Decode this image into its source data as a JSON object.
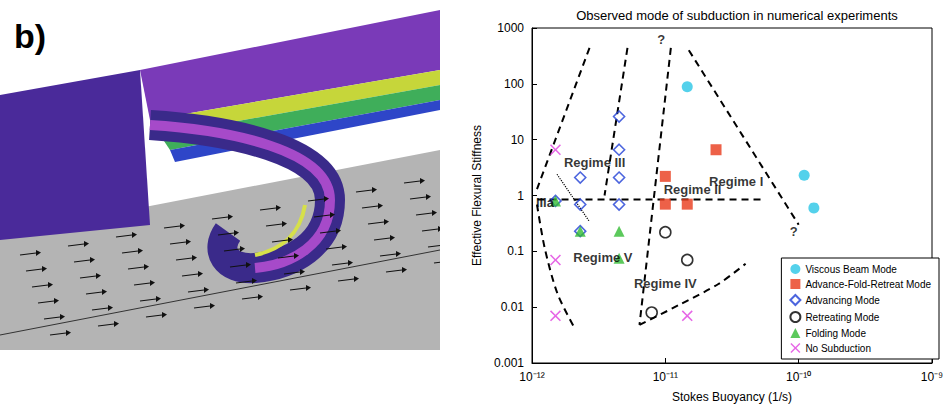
{
  "image_panel": {
    "label": "b)"
  },
  "chart_data": {
    "type": "scatter",
    "title": "Observed mode of subduction in numerical experiments",
    "x_label": "Stokes Buoyancy (1/s)",
    "y_label": "Effective Flexural Stiffness",
    "log": true,
    "grid": false,
    "legend": "lower right",
    "xlim": [
      1e-12,
      1e-09
    ],
    "xticks": [
      {
        "value": 1e-12,
        "label": "10⁻¹²"
      },
      {
        "value": 1e-11,
        "label": "10⁻¹¹"
      },
      {
        "value": 1e-10,
        "label": "10⁻¹⁰"
      },
      {
        "value": 1e-09,
        "label": "10⁻⁹"
      }
    ],
    "ylim": [
      0.001,
      1000
    ],
    "yticks": [
      0.001,
      0.01,
      0.1,
      1,
      10,
      100,
      1000
    ],
    "series": [
      {
        "name": "Viscous Beam Mode",
        "color": "#29c5e6",
        "marker": "circle",
        "x": [
          1.46e-11,
          1.1e-10,
          1.3e-10
        ],
        "y": [
          89,
          2.3,
          0.6
        ]
      },
      {
        "name": "Advance-Fold-Retreat Mode",
        "color": "#e8391a",
        "marker": "square",
        "x": [
          2.4e-11,
          1e-11,
          1e-11,
          1.46e-11
        ],
        "y": [
          6.6,
          2.2,
          0.7,
          0.7
        ]
      },
      {
        "name": "Advancing Mode",
        "color": "#1f3fd6",
        "marker": "diamond_open",
        "x": [
          2.3e-12,
          2.3e-12,
          2.3e-12,
          4.5e-12,
          4.5e-12,
          4.5e-12,
          4.5e-12,
          1.5e-12
        ],
        "y": [
          2.1,
          0.69,
          0.23,
          26,
          6.6,
          2.1,
          0.69,
          0.8
        ]
      },
      {
        "name": "Retreating Mode",
        "color": "#000000",
        "marker": "circle_open",
        "x": [
          1e-11,
          1.46e-11,
          7.9e-12
        ],
        "y": [
          0.22,
          0.07,
          0.008
        ]
      },
      {
        "name": "Folding Mode",
        "color": "#33bb33",
        "marker": "triangle",
        "x": [
          1.5e-12,
          2.3e-12,
          4.5e-12,
          4.5e-12
        ],
        "y": [
          0.8,
          0.23,
          0.23,
          0.075
        ]
      },
      {
        "name": "No Subduction",
        "color": "#e040e0",
        "marker": "x",
        "x": [
          1.5e-12,
          1.5e-12,
          1.5e-12,
          1.46e-11
        ],
        "y": [
          6.6,
          0.07,
          0.007,
          0.007
        ]
      }
    ],
    "regime_boundaries": [
      {
        "line_style": "dashed",
        "points": [
          [
            2.7e-12,
            440
          ],
          [
            1.09e-12,
            1.3
          ]
        ]
      },
      {
        "line_style": "dashed",
        "points": [
          [
            1.09e-12,
            0.69
          ],
          [
            1.25e-12,
            0.11
          ],
          [
            1.56e-12,
            0.017
          ],
          [
            2.1e-12,
            0.0041
          ]
        ]
      },
      {
        "line_style": "dashed",
        "points": [
          [
            5.2e-12,
            440
          ],
          [
            3.5e-12,
            1.0
          ]
        ]
      },
      {
        "line_style": "dashed",
        "points": [
          [
            1.1e-11,
            440
          ],
          [
            6.4e-12,
            0.0048
          ]
        ]
      },
      {
        "line_style": "dashed",
        "points": [
          [
            1.5e-11,
            400
          ],
          [
            1e-10,
            0.3
          ]
        ]
      },
      {
        "line_style": "dashed",
        "points": [
          [
            1.1e-12,
            0.85
          ],
          [
            5.5e-11,
            0.85
          ]
        ]
      },
      {
        "line_style": "dashed",
        "points": [
          [
            6.4e-12,
            0.0048
          ],
          [
            1.27e-11,
            0.011
          ],
          [
            2.5e-11,
            0.026
          ],
          [
            4e-11,
            0.06
          ]
        ]
      },
      {
        "line_style": "dotted",
        "points": [
          [
            1.54e-12,
            2.4
          ],
          [
            2.7e-12,
            0.34
          ]
        ]
      }
    ],
    "annotations": [
      {
        "text": "Regime I",
        "x": 3.4e-11,
        "y": 1.78
      },
      {
        "text": "Regime II",
        "x": 1.6e-11,
        "y": 1.28
      },
      {
        "text": "Regime III",
        "x": 2.95e-12,
        "y": 3.9
      },
      {
        "text": "IIIa",
        "x": 1.25e-12,
        "y": 0.75
      },
      {
        "text": "Regime IV",
        "x": 1e-11,
        "y": 0.026
      },
      {
        "text": "Regime V",
        "x": 3.4e-12,
        "y": 0.078
      },
      {
        "text": "?",
        "x": 9.3e-12,
        "y": 610
      },
      {
        "text": "?",
        "x": 9.2e-11,
        "y": 0.23
      }
    ]
  }
}
